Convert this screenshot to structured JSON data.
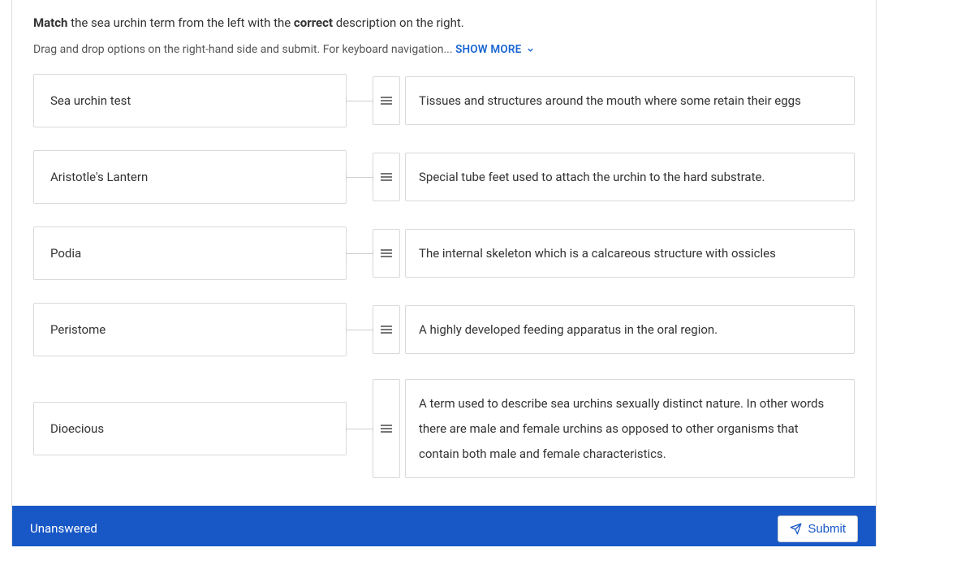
{
  "prompt": {
    "pre": "Match",
    "mid": " the sea urchin term from the left with the ",
    "bold2": "correct",
    "post": " description on the right."
  },
  "instructions": {
    "text": "Drag and drop options on the right-hand side and submit. For keyboard navigation...",
    "show_more_label": "SHOW MORE"
  },
  "rows": [
    {
      "term": "Sea urchin test",
      "description": "Tissues and structures around the mouth where some retain their eggs"
    },
    {
      "term": "Aristotle's Lantern",
      "description": "Special tube feet used to attach the urchin to the hard substrate."
    },
    {
      "term": "Podia",
      "description": "The internal skeleton which is a calcareous structure with ossicles"
    },
    {
      "term": "Peristome",
      "description": "A highly developed feeding apparatus in the oral region."
    },
    {
      "term": "Dioecious",
      "description": "A term used to describe sea urchins sexually distinct nature. In other words there are male and female urchins as opposed to other organisms that contain both male and female characteristics."
    }
  ],
  "footer": {
    "status": "Unanswered",
    "submit_label": "Submit"
  },
  "colors": {
    "footer_bg": "#1757c6",
    "link": "#1a66d1",
    "border": "#d9d9d9"
  }
}
